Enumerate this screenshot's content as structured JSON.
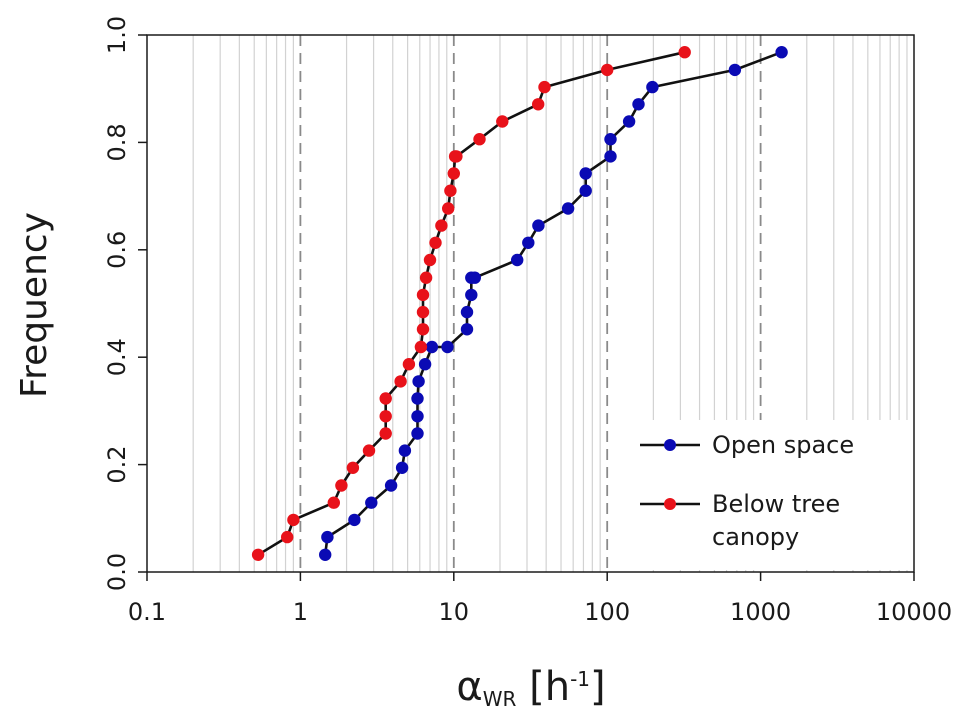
{
  "chart_data": {
    "type": "line",
    "title": "",
    "xlabel": {
      "symbol": "α",
      "subscript": "WR",
      "unit_open": " [h",
      "unit_sup": "-1",
      "unit_close": "]"
    },
    "ylabel": "Frequency",
    "xscale": "log",
    "xlim": [
      0.1,
      10000
    ],
    "ylim": [
      0.0,
      1.0
    ],
    "x_ticks": [
      {
        "value": 0.1,
        "label": "0.1"
      },
      {
        "value": 1,
        "label": "1"
      },
      {
        "value": 10,
        "label": "10"
      },
      {
        "value": 100,
        "label": "100"
      },
      {
        "value": 1000,
        "label": "1000"
      },
      {
        "value": 10000,
        "label": "10000"
      }
    ],
    "y_ticks": [
      {
        "value": 0.0,
        "label": "0.0"
      },
      {
        "value": 0.2,
        "label": "0.2"
      },
      {
        "value": 0.4,
        "label": "0.4"
      },
      {
        "value": 0.6,
        "label": "0.6"
      },
      {
        "value": 0.8,
        "label": "0.8"
      },
      {
        "value": 1.0,
        "label": "1.0"
      }
    ],
    "grid": "minor vertical log grid, dashed lines at decades",
    "legend_position": "bottom-right",
    "series": [
      {
        "name": "Open space",
        "color": "#0a0ab4",
        "x": [
          1.45,
          1.5,
          2.25,
          2.9,
          3.9,
          4.6,
          4.8,
          5.8,
          5.8,
          5.8,
          5.9,
          6.5,
          7.2,
          9.1,
          12.2,
          12.2,
          13.0,
          13.0,
          13.7,
          25.9,
          30.6,
          35.6,
          55.6,
          72.4,
          72.4,
          105,
          105,
          139,
          160,
          197,
          680,
          1370
        ],
        "y": [
          0.032,
          0.065,
          0.097,
          0.129,
          0.161,
          0.194,
          0.226,
          0.258,
          0.29,
          0.323,
          0.355,
          0.387,
          0.419,
          0.419,
          0.452,
          0.484,
          0.516,
          0.548,
          0.548,
          0.581,
          0.613,
          0.645,
          0.677,
          0.71,
          0.742,
          0.774,
          0.806,
          0.839,
          0.871,
          0.903,
          0.935,
          0.968
        ]
      },
      {
        "name": "Below tree canopy",
        "color": "#e8121a",
        "x": [
          0.53,
          0.82,
          0.9,
          1.65,
          1.85,
          2.2,
          2.8,
          3.6,
          3.6,
          3.6,
          4.5,
          5.1,
          6.1,
          6.3,
          6.3,
          6.3,
          6.6,
          7.0,
          7.6,
          8.3,
          9.2,
          9.5,
          10.0,
          10.2,
          10.4,
          14.7,
          20.7,
          35.5,
          39.0,
          100,
          320
        ],
        "y": [
          0.032,
          0.065,
          0.097,
          0.129,
          0.161,
          0.194,
          0.226,
          0.258,
          0.29,
          0.323,
          0.355,
          0.387,
          0.419,
          0.452,
          0.484,
          0.516,
          0.548,
          0.581,
          0.613,
          0.645,
          0.677,
          0.71,
          0.742,
          0.774,
          0.774,
          0.806,
          0.839,
          0.871,
          0.903,
          0.935,
          0.968
        ]
      }
    ],
    "legend": {
      "entries": [
        {
          "lines": [
            "Open space"
          ]
        },
        {
          "lines": [
            "Below tree",
            "canopy"
          ]
        }
      ]
    }
  }
}
